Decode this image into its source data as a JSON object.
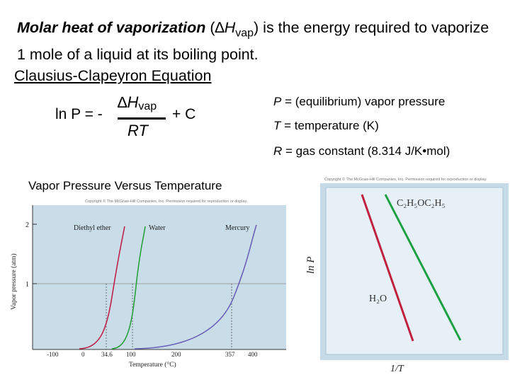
{
  "intro": {
    "term": "Molar heat of vaporization",
    "symbol_open": " (",
    "delta": "∆",
    "symbol_H": "H",
    "symbol_sub": "vap",
    "symbol_close": ")",
    "rest": " is the energy required to vaporize 1 mole of a liquid at its boiling point."
  },
  "equation": {
    "title": "Clausius-Clapeyron Equation",
    "lhs": "ln P = -",
    "numerator_delta": "∆",
    "numerator_H": "H",
    "numerator_sub": "vap",
    "denominator": "RT",
    "plus_c": "+ C"
  },
  "definitions": [
    {
      "symbol": "P",
      "text": " = (equilibrium) vapor pressure"
    },
    {
      "symbol": "T",
      "text": " = temperature (K)"
    },
    {
      "symbol": "R",
      "text": " = gas constant (8.314 J/K•mol)"
    }
  ],
  "vapor_chart": {
    "title": "Vapor Pressure Versus Temperature",
    "copyright": "Copyright © The McGraw-Hill Companies, Inc. Permission required for reproduction or display.",
    "ylabel": "Vapor pressure (atm)",
    "xlabel": "Temperature (°C)",
    "y_ticks": [
      "1",
      "2"
    ],
    "x_ticks": [
      "-100",
      "0",
      "34.6",
      "100",
      "200",
      "357",
      "400"
    ],
    "series_labels": [
      "Diethyl ether",
      "Water",
      "Mercury"
    ],
    "colors": {
      "ether": "#c0214a",
      "water": "#2aa03c",
      "mercury": "#6a62b8",
      "bg": "#c9dde9"
    }
  },
  "lnp_chart": {
    "copyright": "Copyright © The McGraw-Hill Companies, Inc. Permission required for reproduction or display.",
    "ylabel": "ln P",
    "xlabel": "1/T",
    "label_ether": "C₂H₅OC₂H₅",
    "label_water": "H₂O",
    "colors": {
      "ether": "#c0213e",
      "water": "#1ea045",
      "bg": "#e6f0f6",
      "frame": "#c6dbe8"
    }
  }
}
